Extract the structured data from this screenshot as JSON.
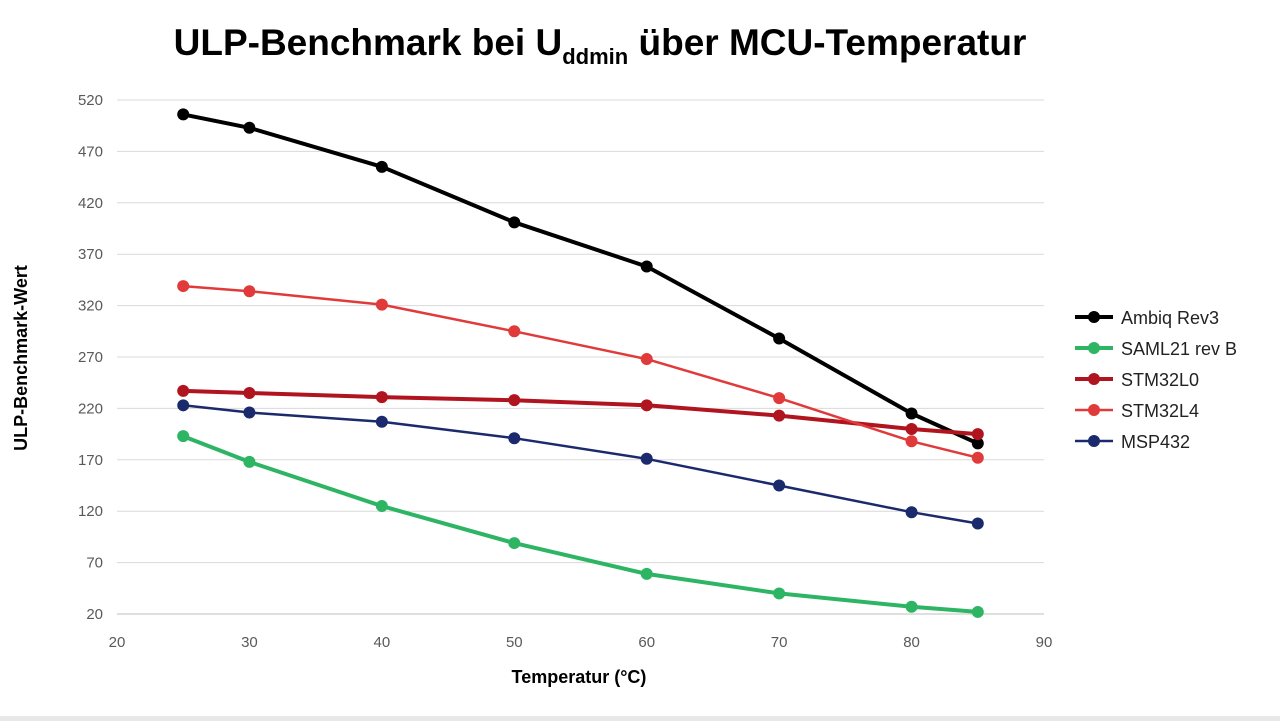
{
  "chart_data": {
    "type": "line",
    "title_main": "ULP-Benchmark bei U",
    "title_sub": "ddmin",
    "title_end": " über MCU-Temperatur",
    "xlabel": "Temperatur (°C)",
    "ylabel": "ULP-Benchmark-Wert",
    "xlim": [
      20,
      90
    ],
    "ylim": [
      20,
      520
    ],
    "xticks": [
      20,
      30,
      40,
      50,
      60,
      70,
      80,
      90
    ],
    "yticks": [
      20,
      70,
      120,
      170,
      220,
      270,
      320,
      370,
      420,
      470,
      520
    ],
    "grid": "horizontal",
    "legend_position": "right",
    "series": [
      {
        "name": "Ambiq Rev3",
        "color": "#000000",
        "width": 4,
        "x": [
          25,
          30,
          40,
          50,
          60,
          70,
          80,
          85
        ],
        "y": [
          506,
          493,
          455,
          401,
          358,
          288,
          215,
          186
        ]
      },
      {
        "name": "SAML21 rev B",
        "color": "#2db564",
        "width": 4,
        "x": [
          25,
          30,
          40,
          50,
          60,
          70,
          80,
          85
        ],
        "y": [
          193,
          168,
          125,
          89,
          59,
          40,
          27,
          22
        ]
      },
      {
        "name": "STM32L0",
        "color": "#b0141e",
        "width": 4,
        "x": [
          25,
          30,
          40,
          50,
          60,
          70,
          80,
          85
        ],
        "y": [
          237,
          235,
          231,
          228,
          223,
          213,
          200,
          195
        ]
      },
      {
        "name": "STM32L4",
        "color": "#e03a3a",
        "width": 2.5,
        "x": [
          25,
          30,
          40,
          50,
          60,
          70,
          80,
          85
        ],
        "y": [
          339,
          334,
          321,
          295,
          268,
          230,
          188,
          172
        ]
      },
      {
        "name": "MSP432",
        "color": "#1a2a6c",
        "width": 2.5,
        "x": [
          25,
          30,
          40,
          50,
          60,
          70,
          80,
          85
        ],
        "y": [
          223,
          216,
          207,
          191,
          171,
          145,
          119,
          108
        ]
      }
    ]
  }
}
